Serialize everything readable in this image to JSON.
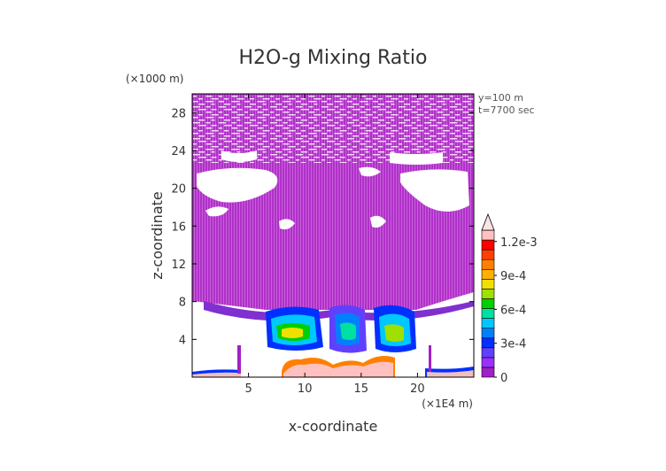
{
  "chart_data": {
    "type": "heatmap",
    "title": "H2O-g Mixing Ratio",
    "xlabel": "x-coordinate",
    "ylabel": "z-coordinate",
    "x_unit": "(×1E4 m)",
    "y_unit": "(×1000 m)",
    "xlim": [
      0,
      25
    ],
    "ylim": [
      0,
      30
    ],
    "xticks": [
      5,
      10,
      15,
      20
    ],
    "yticks": [
      4,
      8,
      12,
      16,
      20,
      24,
      28
    ],
    "annotations": [
      "y=100 m",
      "t=7700 sec"
    ],
    "colorbar": {
      "min": 0,
      "max": 0.0013,
      "tick_values": [
        0,
        0.0003,
        0.0006,
        0.0009,
        0.0012
      ],
      "tick_labels": [
        "0",
        "3e-4",
        "6e-4",
        "9e-4",
        "1.2e-3"
      ],
      "colors": [
        "#a020c8",
        "#9b30ff",
        "#6040ff",
        "#0030ff",
        "#0080ff",
        "#00c8ff",
        "#00e0a0",
        "#00d000",
        "#a0e000",
        "#f0e000",
        "#ffb000",
        "#ff8000",
        "#ff4000",
        "#ff0000",
        "#ffc0c0"
      ],
      "extend": "max"
    }
  }
}
